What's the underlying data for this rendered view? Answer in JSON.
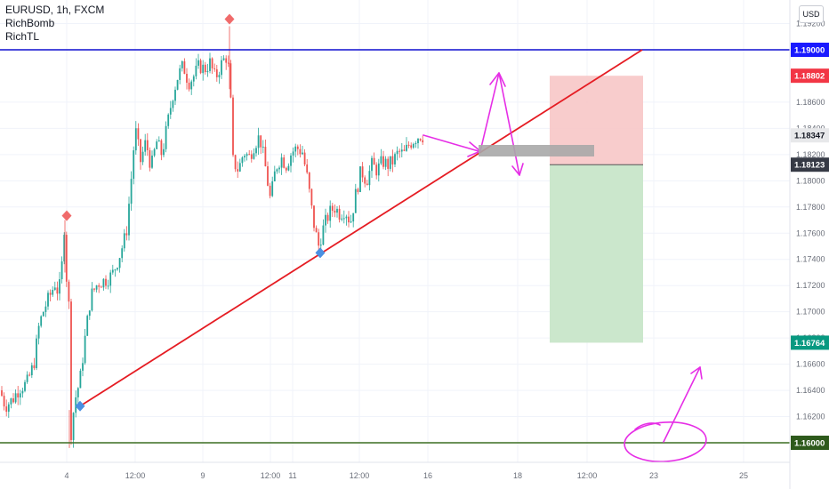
{
  "legend": {
    "symbol": "EURUSD, 1h, FXCM",
    "indicator1": "RichBomb",
    "indicator2": "RichTL"
  },
  "currency_button": "USD",
  "price_tags": [
    {
      "label": "1.19000",
      "color": "#1a1aff",
      "price": 1.19
    },
    {
      "label": "1.18802",
      "color": "#f23645",
      "price": 1.18802
    },
    {
      "label": "1.18347",
      "color": "#e7e8ea",
      "text_color": "#131722",
      "price": 1.18347
    },
    {
      "label": "1.18123",
      "color": "#363a45",
      "price": 1.18123
    },
    {
      "label": "1.16764",
      "color": "#089981",
      "price": 1.16764
    },
    {
      "label": "1.16000",
      "color": "#2e5a1c",
      "price": 1.16
    }
  ],
  "chart_data": {
    "type": "candlestick",
    "symbol": "EURUSD",
    "timeframe": "1h",
    "ylim": [
      1.1596,
      1.1928
    ],
    "y_ticks": [
      "1.16200",
      "1.16400",
      "1.16600",
      "1.16800",
      "1.17000",
      "1.17200",
      "1.17400",
      "1.17600",
      "1.17800",
      "1.18000",
      "1.18200",
      "1.18400",
      "1.18600",
      "1.19200"
    ],
    "x_ticks": [
      "4",
      "12:00",
      "9",
      "12:00",
      "11",
      "12:00",
      "16",
      "18",
      "12:00",
      "23",
      "25"
    ],
    "price_path": [
      [
        0,
        1.164
      ],
      [
        6,
        1.1628
      ],
      [
        14,
        1.1633
      ],
      [
        22,
        1.1642
      ],
      [
        30,
        1.1645
      ],
      [
        38,
        1.166
      ],
      [
        44,
        1.169
      ],
      [
        50,
        1.1703
      ],
      [
        56,
        1.1712
      ],
      [
        62,
        1.1722
      ],
      [
        66,
        1.1713
      ],
      [
        70,
        1.1738
      ],
      [
        72,
        1.1768
      ],
      [
        74,
        1.1733
      ],
      [
        78,
        1.17
      ],
      [
        80,
        1.1608
      ],
      [
        84,
        1.1632
      ],
      [
        90,
        1.1648
      ],
      [
        96,
        1.1682
      ],
      [
        102,
        1.1712
      ],
      [
        110,
        1.1722
      ],
      [
        118,
        1.1724
      ],
      [
        126,
        1.1728
      ],
      [
        134,
        1.1742
      ],
      [
        142,
        1.176
      ],
      [
        148,
        1.1805
      ],
      [
        152,
        1.184
      ],
      [
        158,
        1.1815
      ],
      [
        164,
        1.183
      ],
      [
        170,
        1.181
      ],
      [
        176,
        1.183
      ],
      [
        182,
        1.182
      ],
      [
        188,
        1.1842
      ],
      [
        194,
        1.1865
      ],
      [
        200,
        1.188
      ],
      [
        206,
        1.1888
      ],
      [
        212,
        1.1875
      ],
      [
        218,
        1.188
      ],
      [
        224,
        1.1888
      ],
      [
        230,
        1.1885
      ],
      [
        236,
        1.189
      ],
      [
        242,
        1.1878
      ],
      [
        248,
        1.1888
      ],
      [
        254,
        1.1895
      ],
      [
        258,
        1.1883
      ],
      [
        262,
        1.1815
      ],
      [
        268,
        1.1808
      ],
      [
        274,
        1.1822
      ],
      [
        280,
        1.1818
      ],
      [
        286,
        1.1828
      ],
      [
        292,
        1.1834
      ],
      [
        298,
        1.1812
      ],
      [
        304,
        1.1785
      ],
      [
        310,
        1.181
      ],
      [
        316,
        1.1818
      ],
      [
        322,
        1.1812
      ],
      [
        328,
        1.1822
      ],
      [
        334,
        1.1825
      ],
      [
        340,
        1.1822
      ],
      [
        346,
        1.18
      ],
      [
        352,
        1.177
      ],
      [
        358,
        1.175
      ],
      [
        364,
        1.1765
      ],
      [
        370,
        1.1775
      ],
      [
        376,
        1.178
      ],
      [
        382,
        1.1775
      ],
      [
        388,
        1.1778
      ],
      [
        394,
        1.1768
      ],
      [
        400,
        1.179
      ],
      [
        406,
        1.1808
      ],
      [
        412,
        1.18
      ],
      [
        418,
        1.1812
      ],
      [
        424,
        1.1808
      ],
      [
        430,
        1.1815
      ],
      [
        436,
        1.1812
      ],
      [
        442,
        1.1815
      ],
      [
        448,
        1.1822
      ],
      [
        454,
        1.182
      ],
      [
        460,
        1.1828
      ],
      [
        466,
        1.1832
      ],
      [
        472,
        1.1835
      ],
      [
        476,
        1.1834
      ]
    ],
    "high_marker": {
      "label": "diamond",
      "x_index": 257,
      "price": 1.1918
    },
    "low_markers": [
      {
        "x_index": 90,
        "price": 1.1628
      },
      {
        "x_index": 360,
        "price": 1.1745
      }
    ],
    "upper_marker_2": {
      "x_index": 75,
      "price": 1.1772
    },
    "trendline": {
      "from_price": 1.1628,
      "to_price": 1.19,
      "color": "#e51c23"
    },
    "horizontal_levels": [
      {
        "price": 1.19,
        "color": "#0f0fd1"
      },
      {
        "price": 1.16,
        "color": "#3c6e22"
      }
    ],
    "position": {
      "entry": 1.18123,
      "stop": 1.18802,
      "target": 1.16764,
      "stop_color": "#f7c6c6",
      "target_color": "#c8e6c9"
    },
    "annotation_color": "#e62ee6"
  }
}
